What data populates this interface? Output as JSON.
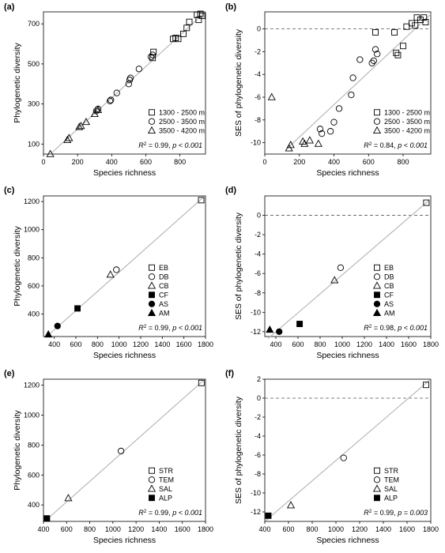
{
  "colors": {
    "axis": "#000000",
    "fit_line": "#b3b3b3",
    "zero_line": "#555555",
    "marker": "#000000"
  },
  "chart_data": [
    {
      "panel": "(a)",
      "type": "scatter",
      "xlabel": "Species richness",
      "ylabel": "Phylogenetic diversity",
      "xlim": [
        0,
        950
      ],
      "ylim": [
        50,
        760
      ],
      "xticks": [
        0,
        200,
        400,
        600,
        800
      ],
      "yticks": [
        100,
        300,
        500,
        700
      ],
      "fit": [
        [
          40,
          50
        ],
        [
          950,
          760
        ]
      ],
      "zero_line": false,
      "legend_position": "right",
      "stat_r2": "0.99",
      "stat_p": "p < 0.001",
      "series": [
        {
          "name": "1300 - 2500 m",
          "marker": "square-open",
          "x": [
            640,
            645,
            760,
            775,
            790,
            820,
            840,
            855,
            900,
            910,
            920,
            930
          ],
          "y": [
            530,
            560,
            625,
            630,
            625,
            650,
            680,
            710,
            745,
            720,
            750,
            740
          ]
        },
        {
          "name": "2500 - 3500 m",
          "marker": "circle-open",
          "x": [
            310,
            320,
            390,
            395,
            430,
            500,
            505,
            510,
            560,
            630,
            640
          ],
          "y": [
            265,
            275,
            315,
            320,
            355,
            400,
            420,
            430,
            475,
            535,
            545
          ]
        },
        {
          "name": "3500 - 4200 m",
          "marker": "triangle-open",
          "x": [
            40,
            140,
            150,
            210,
            220,
            250,
            300,
            320
          ],
          "y": [
            50,
            120,
            130,
            185,
            190,
            210,
            250,
            270
          ]
        }
      ]
    },
    {
      "panel": "(b)",
      "type": "scatter",
      "xlabel": "Species richness",
      "ylabel": "SES of phylogenetic diversity",
      "xlim": [
        0,
        960
      ],
      "ylim": [
        -11,
        1.5
      ],
      "xticks": [
        0,
        200,
        400,
        600,
        800
      ],
      "yticks": [
        -10,
        -8,
        -6,
        -4,
        -2,
        0
      ],
      "fit": [
        [
          130,
          -10.5
        ],
        [
          960,
          1.3
        ]
      ],
      "zero_line": true,
      "legend_position": "right",
      "stat_r2": "0.84",
      "stat_p": "p < 0.001",
      "series": [
        {
          "name": "1300 - 2500 m",
          "marker": "square-open",
          "x": [
            640,
            750,
            760,
            770,
            800,
            820,
            850,
            870,
            880,
            900,
            920,
            930
          ],
          "y": [
            -0.3,
            -0.3,
            -2.1,
            -2.3,
            -1.5,
            0.2,
            0.5,
            0.3,
            1.0,
            0.8,
            1.0,
            0.6
          ]
        },
        {
          "name": "2500 - 3500 m",
          "marker": "circle-open",
          "x": [
            320,
            330,
            380,
            400,
            430,
            500,
            510,
            550,
            620,
            630,
            640,
            650
          ],
          "y": [
            -8.8,
            -9.2,
            -9.0,
            -8.2,
            -7.0,
            -5.8,
            -4.3,
            -2.7,
            -3.0,
            -2.8,
            -1.8,
            -2.2
          ]
        },
        {
          "name": "3500 - 4200 m",
          "marker": "triangle-open",
          "x": [
            40,
            140,
            150,
            220,
            230,
            260,
            310
          ],
          "y": [
            -6.0,
            -10.5,
            -10.2,
            -9.9,
            -10.1,
            -9.8,
            -10.1
          ]
        }
      ]
    },
    {
      "panel": "(c)",
      "type": "scatter",
      "xlabel": "Species richness",
      "ylabel": "Phylogenetic diversity",
      "xlim": [
        300,
        1800
      ],
      "ylim": [
        240,
        1240
      ],
      "xticks": [
        400,
        600,
        800,
        1000,
        1200,
        1400,
        1600,
        1800
      ],
      "yticks": [
        400,
        600,
        800,
        1000,
        1200
      ],
      "fit": [
        [
          330,
          240
        ],
        [
          1780,
          1230
        ]
      ],
      "zero_line": false,
      "legend_position": "right",
      "stat_r2": "0.99",
      "stat_p": "p < 0.001",
      "series": [
        {
          "name": "EB",
          "marker": "square-open",
          "x": [
            1760
          ],
          "y": [
            1210
          ]
        },
        {
          "name": "DB",
          "marker": "circle-open",
          "x": [
            975
          ],
          "y": [
            715
          ]
        },
        {
          "name": "CB",
          "marker": "triangle-open",
          "x": [
            920
          ],
          "y": [
            680
          ]
        },
        {
          "name": "CF",
          "marker": "square-filled",
          "x": [
            615
          ],
          "y": [
            440
          ]
        },
        {
          "name": "AS",
          "marker": "circle-filled",
          "x": [
            430
          ],
          "y": [
            315
          ]
        },
        {
          "name": "AM",
          "marker": "triangle-filled",
          "x": [
            345
          ],
          "y": [
            255
          ]
        }
      ]
    },
    {
      "panel": "(d)",
      "type": "scatter",
      "xlabel": "Species richness",
      "ylabel": "SES of phylogenetic diversity",
      "xlim": [
        300,
        1800
      ],
      "ylim": [
        -12.5,
        2
      ],
      "xticks": [
        400,
        600,
        800,
        1000,
        1200,
        1400,
        1600,
        1800
      ],
      "yticks": [
        -12,
        -10,
        -8,
        -6,
        -4,
        -2,
        0
      ],
      "fit": [
        [
          330,
          -12.7
        ],
        [
          1780,
          1.5
        ]
      ],
      "zero_line": true,
      "legend_position": "right",
      "stat_r2": "0.98",
      "stat_p": "p < 0.001",
      "series": [
        {
          "name": "EB",
          "marker": "square-open",
          "x": [
            1760
          ],
          "y": [
            1.3
          ]
        },
        {
          "name": "DB",
          "marker": "circle-open",
          "x": [
            985
          ],
          "y": [
            -5.4
          ]
        },
        {
          "name": "CB",
          "marker": "triangle-open",
          "x": [
            930
          ],
          "y": [
            -6.7
          ]
        },
        {
          "name": "CF",
          "marker": "square-filled",
          "x": [
            615
          ],
          "y": [
            -11.2
          ]
        },
        {
          "name": "AS",
          "marker": "circle-filled",
          "x": [
            430
          ],
          "y": [
            -12.0
          ]
        },
        {
          "name": "AM",
          "marker": "triangle-filled",
          "x": [
            345
          ],
          "y": [
            -11.8
          ]
        }
      ]
    },
    {
      "panel": "(e)",
      "type": "scatter",
      "xlabel": "Species richness",
      "ylabel": "Phylogenetic diversity",
      "xlim": [
        400,
        1800
      ],
      "ylim": [
        290,
        1240
      ],
      "xticks": [
        400,
        600,
        800,
        1000,
        1200,
        1400,
        1600,
        1800
      ],
      "yticks": [
        400,
        600,
        800,
        1000,
        1200
      ],
      "fit": [
        [
          410,
          290
        ],
        [
          1780,
          1230
        ]
      ],
      "zero_line": false,
      "legend_position": "right",
      "stat_r2": "0.99",
      "stat_p": "p < 0.001",
      "series": [
        {
          "name": "STR",
          "marker": "square-open",
          "x": [
            1765
          ],
          "y": [
            1215
          ]
        },
        {
          "name": "TEM",
          "marker": "circle-open",
          "x": [
            1070
          ],
          "y": [
            760
          ]
        },
        {
          "name": "SAL",
          "marker": "triangle-open",
          "x": [
            615
          ],
          "y": [
            445
          ]
        },
        {
          "name": "ALP",
          "marker": "square-filled",
          "x": [
            430
          ],
          "y": [
            310
          ]
        }
      ]
    },
    {
      "panel": "(f)",
      "type": "scatter",
      "xlabel": "Species richness",
      "ylabel": "SES of phylogenetic diversity",
      "xlim": [
        400,
        1800
      ],
      "ylim": [
        -13,
        2
      ],
      "xticks": [
        400,
        600,
        800,
        1000,
        1200,
        1400,
        1600,
        1800
      ],
      "yticks": [
        -12,
        -10,
        -8,
        -6,
        -4,
        -2,
        0,
        2
      ],
      "fit": [
        [
          410,
          -12.9
        ],
        [
          1790,
          1.9
        ]
      ],
      "zero_line": true,
      "legend_position": "right",
      "stat_r2": "0.99",
      "stat_p": "p = 0.003",
      "series": [
        {
          "name": "STR",
          "marker": "square-open",
          "x": [
            1760
          ],
          "y": [
            1.4
          ]
        },
        {
          "name": "TEM",
          "marker": "circle-open",
          "x": [
            1065
          ],
          "y": [
            -6.3
          ]
        },
        {
          "name": "SAL",
          "marker": "triangle-open",
          "x": [
            620
          ],
          "y": [
            -11.3
          ]
        },
        {
          "name": "ALP",
          "marker": "square-filled",
          "x": [
            430
          ],
          "y": [
            -12.4
          ]
        }
      ]
    }
  ]
}
